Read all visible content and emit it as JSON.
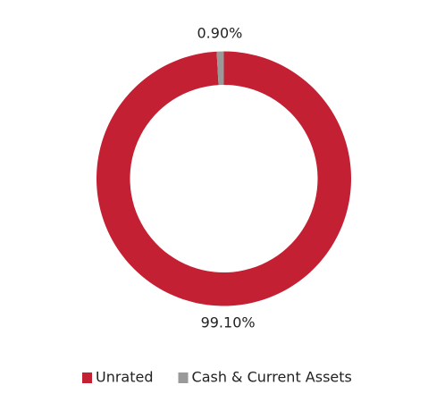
{
  "chart_data": {
    "type": "donut",
    "categories": [
      "Unrated",
      "Cash & Current Assets"
    ],
    "values": [
      99.1,
      0.9
    ],
    "value_labels": [
      "99.10%",
      "0.90%"
    ],
    "colors": [
      "#c42033",
      "#999999"
    ],
    "legend": "bottom"
  }
}
